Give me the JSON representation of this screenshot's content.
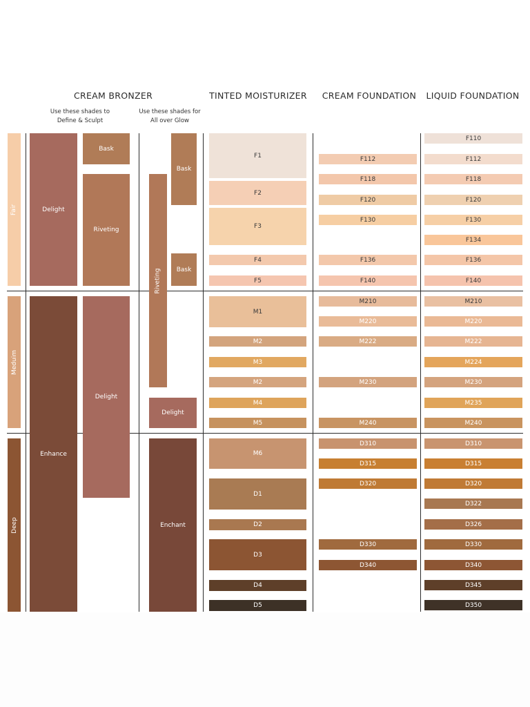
{
  "headers": {
    "cream_bronzer": "CREAM BRONZER",
    "tinted_moisturizer": "TINTED MOISTURIZER",
    "cream_foundation": "CREAM FOUNDATION",
    "liquid_foundation": "LIQUID FOUNDATION"
  },
  "subheaders": {
    "define_sculpt": "Use these shades to\nDefine & Sculpt",
    "all_over_glow": "Use these shades for\nAll over Glow"
  },
  "tone_groups": {
    "fair": "Fair",
    "medium": "Meduim",
    "deep": "Deep"
  },
  "bronzer_define": {
    "delight_1": "Delight",
    "enhance": "Enhance",
    "bask": "Bask",
    "riveting": "Riveting",
    "delight_2": "Delight"
  },
  "bronzer_glow": {
    "riveting": "Riveting",
    "bask_1": "Bask",
    "bask_2": "Bask",
    "delight": "Delight",
    "enchant": "Enchant"
  },
  "tinted_moisturizer": [
    "F1",
    "F2",
    "F3",
    "F4",
    "F5",
    "M1",
    "M2",
    "M3",
    "M2",
    "M4",
    "M5",
    "M6",
    "D1",
    "D2",
    "D3",
    "D4",
    "D5"
  ],
  "cream_foundation": [
    "F112",
    "F118",
    "F120",
    "F130",
    "F136",
    "F140",
    "M210",
    "M220",
    "M222",
    "M230",
    "M240",
    "D310",
    "D315",
    "D320",
    "D330",
    "D340"
  ],
  "liquid_foundation": [
    "F110",
    "F112",
    "F118",
    "F120",
    "F130",
    "F134",
    "F136",
    "F140",
    "M210",
    "M220",
    "M222",
    "M224",
    "M230",
    "M235",
    "M240",
    "D310",
    "D315",
    "D320",
    "D322",
    "D326",
    "D330",
    "D340",
    "D345",
    "D350"
  ],
  "colors": {
    "ink": "#2b2b2b",
    "swatch_text": "#ffffff",
    "fair_bar": "#f6cda8",
    "medium_bar": "#d8a27a",
    "deep_bar": "#8c5533",
    "delight": "#a66a5e",
    "enhance": "#7b4b38",
    "bask": "#b07c57",
    "riveting": "#b17858",
    "enchant": "#784839"
  }
}
